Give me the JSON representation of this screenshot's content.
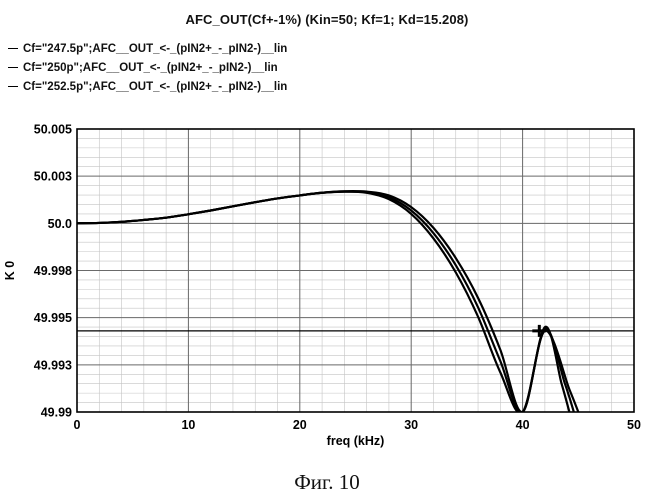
{
  "chart_data": {
    "type": "line",
    "title": "AFC_OUT(Cf+-1%) (Kin=50; Kf=1; Kd=15.208)",
    "xlabel": "freq (kHz)",
    "ylabel": "K 0",
    "xlim": [
      0,
      50
    ],
    "ylim": [
      49.99,
      50.005
    ],
    "x_ticks": [
      0,
      10,
      20,
      30,
      40,
      50
    ],
    "x_tick_labels": [
      "0",
      "10",
      "20",
      "30",
      "40",
      "50"
    ],
    "y_ticks": [
      49.99,
      49.9925,
      49.995,
      49.9975,
      50.0,
      50.0025,
      50.005
    ],
    "y_tick_labels": [
      "49.99",
      "49.993",
      "49.995",
      "49.998",
      "50.0",
      "50.003",
      "50.005"
    ],
    "grid": true,
    "legend_position": "top-left",
    "marker_y": 49.9943,
    "series": [
      {
        "name": "Cf=\"247.5p\";AFC__OUT_<-_(pIN2+_-_pIN2-)__lin",
        "x": [
          0,
          2,
          4,
          6,
          8,
          10,
          12,
          14,
          16,
          18,
          20,
          22,
          24,
          26,
          28,
          30,
          32,
          34,
          36,
          38,
          40,
          42,
          43.5,
          44.2
        ],
        "y": [
          50.0,
          50.00002,
          50.00008,
          50.00018,
          50.0003,
          50.00048,
          50.00068,
          50.0009,
          50.00112,
          50.00132,
          50.00148,
          50.00162,
          50.00168,
          50.00162,
          50.00128,
          50.0005,
          49.9992,
          49.9974,
          49.99505,
          49.9921,
          49.99,
          49.9945,
          49.9915,
          49.99
        ]
      },
      {
        "name": "Cf=\"250p\";AFC__OUT_<-_(pIN2+_-_pIN2-)__lin",
        "x": [
          0,
          2,
          4,
          6,
          8,
          10,
          12,
          14,
          16,
          18,
          20,
          22,
          24,
          26,
          28,
          30,
          32,
          34,
          36,
          38,
          40,
          42,
          43.8,
          44.6
        ],
        "y": [
          50.0,
          50.00002,
          50.00008,
          50.00018,
          50.0003,
          50.00048,
          50.00068,
          50.0009,
          50.00112,
          50.00132,
          50.00148,
          50.00162,
          50.00168,
          50.00165,
          50.00138,
          50.00068,
          49.99948,
          49.99778,
          49.99555,
          49.9927,
          49.99,
          49.9944,
          49.9915,
          49.99
        ]
      },
      {
        "name": "Cf=\"252.5p\";AFC__OUT_<-_(pIN2+_-_pIN2-)__lin",
        "x": [
          0,
          2,
          4,
          6,
          8,
          10,
          12,
          14,
          16,
          18,
          20,
          22,
          24,
          26,
          28,
          30,
          32,
          34,
          36,
          38,
          40,
          42,
          44.2,
          45.0
        ],
        "y": [
          50.0,
          50.00002,
          50.00008,
          50.00018,
          50.0003,
          50.00048,
          50.00068,
          50.0009,
          50.00112,
          50.00132,
          50.00148,
          50.00162,
          50.0017,
          50.00168,
          50.00148,
          50.00086,
          49.99976,
          49.99816,
          49.99605,
          49.9933,
          49.99,
          49.9943,
          49.9912,
          49.99
        ]
      }
    ]
  },
  "figure_caption": "Фиг. 10"
}
